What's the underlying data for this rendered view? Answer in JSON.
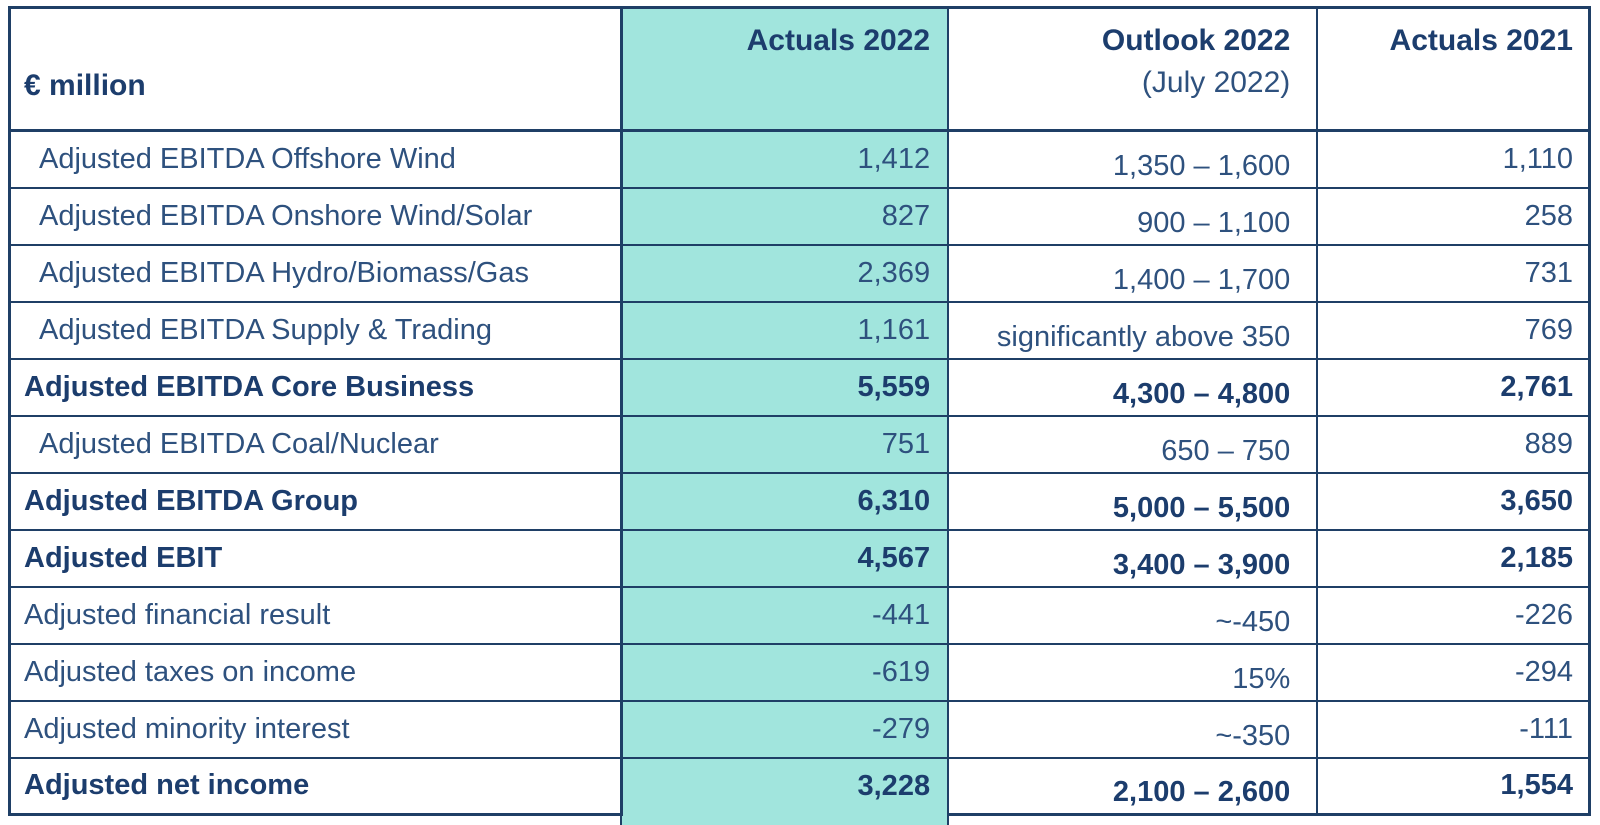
{
  "table": {
    "unit_header": "€ million",
    "columns": {
      "actuals_2022": "Actuals 2022",
      "outlook_2022_line1": "Outlook 2022",
      "outlook_2022_line2": "(July 2022)",
      "actuals_2021": "Actuals 2021"
    },
    "rows": [
      {
        "label": "Adjusted EBITDA Offshore Wind",
        "actuals_2022": "1,412",
        "outlook_2022": "1,350 – 1,600",
        "actuals_2021": "1,110",
        "emphasis": "indent"
      },
      {
        "label": "Adjusted EBITDA Onshore Wind/Solar",
        "actuals_2022": "827",
        "outlook_2022": "900 – 1,100",
        "actuals_2021": "258",
        "emphasis": "indent"
      },
      {
        "label": "Adjusted EBITDA Hydro/Biomass/Gas",
        "actuals_2022": "2,369",
        "outlook_2022": "1,400 – 1,700",
        "actuals_2021": "731",
        "emphasis": "indent"
      },
      {
        "label": "Adjusted EBITDA Supply & Trading",
        "actuals_2022": "1,161",
        "outlook_2022": "significantly above 350",
        "actuals_2021": "769",
        "emphasis": "indent"
      },
      {
        "label": "Adjusted EBITDA Core Business",
        "actuals_2022": "5,559",
        "outlook_2022": "4,300 – 4,800",
        "actuals_2021": "2,761",
        "emphasis": "bold"
      },
      {
        "label": "Adjusted EBITDA Coal/Nuclear",
        "actuals_2022": "751",
        "outlook_2022": "650 – 750",
        "actuals_2021": "889",
        "emphasis": "indent"
      },
      {
        "label": "Adjusted EBITDA Group",
        "actuals_2022": "6,310",
        "outlook_2022": "5,000 – 5,500",
        "actuals_2021": "3,650",
        "emphasis": "bold"
      },
      {
        "label": "Adjusted EBIT",
        "actuals_2022": "4,567",
        "outlook_2022": "3,400 – 3,900",
        "actuals_2021": "2,185",
        "emphasis": "bold"
      },
      {
        "label": "Adjusted financial result",
        "actuals_2022": "-441",
        "outlook_2022": "~-450",
        "actuals_2021": "-226",
        "emphasis": "plain"
      },
      {
        "label": "Adjusted taxes on income",
        "actuals_2022": "-619",
        "outlook_2022": "15%",
        "actuals_2021": "-294",
        "emphasis": "plain"
      },
      {
        "label": "Adjusted minority interest",
        "actuals_2022": "-279",
        "outlook_2022": "~-350",
        "actuals_2021": "-111",
        "emphasis": "plain"
      },
      {
        "label": "Adjusted net income",
        "actuals_2022": "3,228",
        "outlook_2022": "2,100 – 2,600",
        "actuals_2021": "1,554",
        "emphasis": "bold"
      }
    ]
  },
  "colors": {
    "highlight_teal": "#a1e5dd",
    "navy_bold_text": "#1c3d6d",
    "navy_regular_text": "#2e517e",
    "border_navy": "#1f3f66"
  }
}
